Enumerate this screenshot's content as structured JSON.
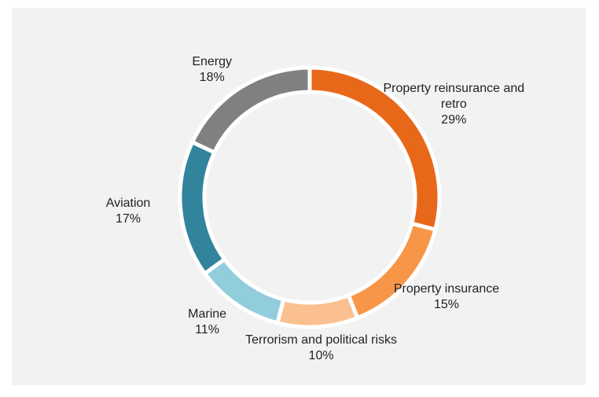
{
  "chart_data": {
    "type": "donut",
    "categories": [
      "Property reinsurance and retro",
      "Property insurance",
      "Terrorism and political risks",
      "Marine",
      "Aviation",
      "Energy"
    ],
    "values": [
      29,
      15,
      10,
      11,
      17,
      18
    ],
    "value_labels": [
      "29%",
      "15%",
      "10%",
      "11%",
      "17%",
      "18%"
    ],
    "colors": [
      "#e8681a",
      "#f79646",
      "#fbc08f",
      "#92cddc",
      "#31849b",
      "#808080"
    ]
  }
}
